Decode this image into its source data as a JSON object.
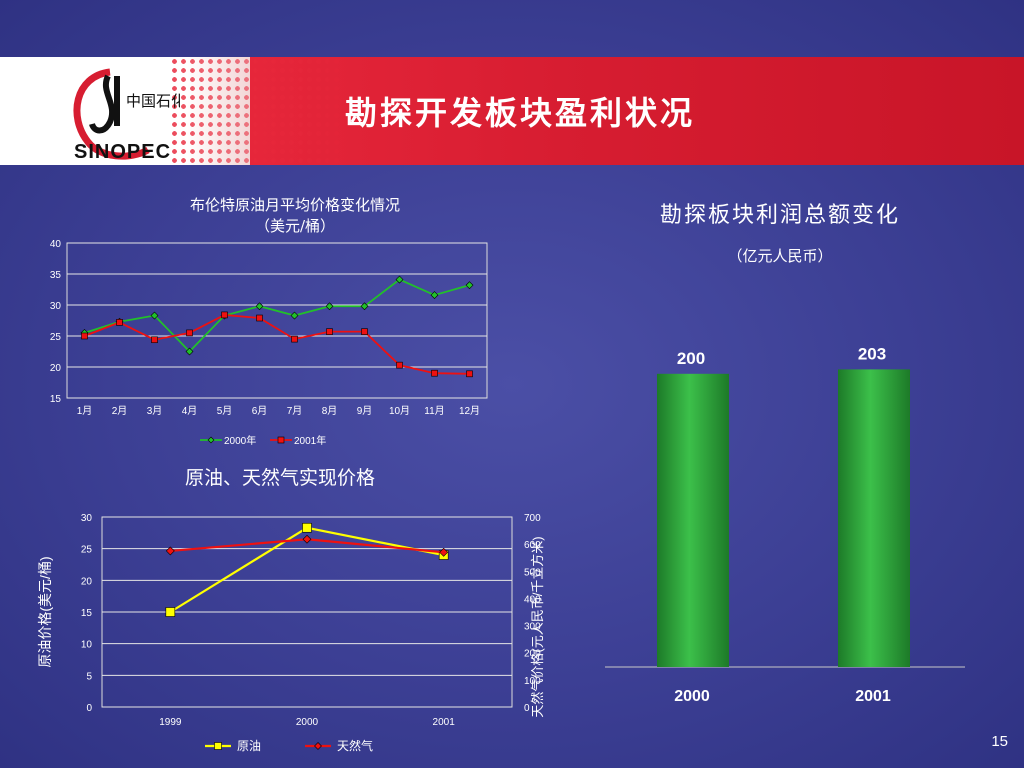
{
  "slide": {
    "title": "勘探开发板块盈利状况",
    "page_number": "15",
    "logo_text": "中国石化",
    "logo_wordmark": "SINOPEC"
  },
  "colors": {
    "background": "#3c3f94",
    "banner_red": "#d71d31",
    "green_line": "#22c02a",
    "red_line": "#ee1111",
    "yellow_line": "#ffff00",
    "bar_green": "#2aa83a"
  },
  "chart_data": [
    {
      "type": "line",
      "title": "布伦特原油月平均价格变化情况",
      "subtitle": "（美元/桶）",
      "categories": [
        "1月",
        "2月",
        "3月",
        "4月",
        "5月",
        "6月",
        "7月",
        "8月",
        "9月",
        "10月",
        "11月",
        "12月"
      ],
      "ylim": [
        15,
        40
      ],
      "yticks": [
        15,
        20,
        25,
        30,
        35,
        40
      ],
      "grid": true,
      "legend_position": "bottom",
      "series": [
        {
          "name": "2000年",
          "color": "#22c02a",
          "marker": "diamond",
          "values": [
            25.5,
            27.3,
            28.3,
            22.5,
            28.3,
            29.8,
            28.3,
            29.8,
            29.8,
            34.1,
            31.6,
            33.2
          ]
        },
        {
          "name": "2001年",
          "color": "#ee1111",
          "marker": "square",
          "values": [
            25.0,
            27.2,
            24.4,
            25.5,
            28.4,
            27.9,
            24.5,
            25.7,
            25.7,
            20.3,
            19.0,
            18.9
          ]
        }
      ]
    },
    {
      "type": "line",
      "title": "原油、天然气实现价格",
      "categories": [
        "1999",
        "2000",
        "2001"
      ],
      "ylabel": "原油价格(美元/桶)",
      "ylim": [
        0,
        30
      ],
      "yticks": [
        0,
        5,
        10,
        15,
        20,
        25,
        30
      ],
      "y2label": "天然气价格(元人民币/千立方米)",
      "y2lim": [
        0,
        700
      ],
      "y2ticks": [
        0,
        100,
        200,
        300,
        400,
        500,
        600,
        700
      ],
      "grid": true,
      "legend_position": "bottom",
      "series": [
        {
          "name": "原油",
          "axis": "left",
          "color": "#ffff00",
          "marker": "square",
          "values": [
            15.0,
            28.3,
            24.0
          ]
        },
        {
          "name": "天然气",
          "axis": "right",
          "color": "#ee1111",
          "marker": "diamond",
          "values": [
            575,
            618,
            570
          ]
        }
      ]
    },
    {
      "type": "bar",
      "title": "勘探板块利润总额变化",
      "subtitle": "（亿元人民币）",
      "categories": [
        "2000",
        "2001"
      ],
      "values": [
        200,
        203
      ],
      "data_labels": [
        "200",
        "203"
      ],
      "color": "#2aa83a"
    }
  ]
}
